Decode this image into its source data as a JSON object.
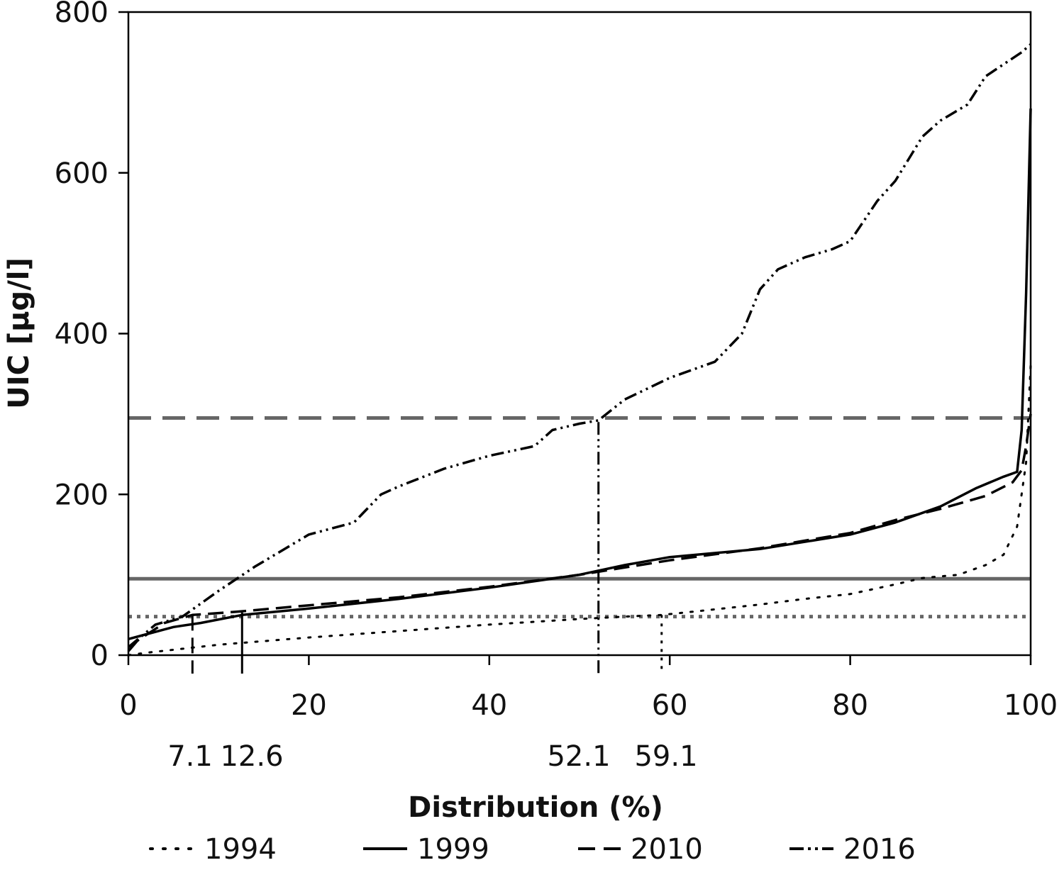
{
  "chart_data": {
    "type": "line",
    "xlabel": "Distribution (%)",
    "ylabel": "UIC [μg/l]",
    "xlim": [
      0,
      100
    ],
    "ylim": [
      0,
      800
    ],
    "x_ticks": [
      "0",
      "20",
      "40",
      "60",
      "80",
      "100"
    ],
    "y_ticks": [
      "0",
      "200",
      "400",
      "600",
      "800"
    ],
    "grid": false,
    "legend_position": "bottom",
    "series": [
      {
        "name": "1994",
        "style": "dotted",
        "x": [
          0,
          2,
          10,
          20,
          30,
          40,
          50,
          55,
          59.1,
          65,
          70,
          75,
          80,
          85,
          88,
          92,
          95,
          97,
          98.5,
          99.5,
          100
        ],
        "y": [
          0,
          3,
          13,
          22,
          30,
          38,
          45,
          48,
          50,
          57,
          63,
          70,
          76,
          88,
          96,
          100,
          112,
          125,
          160,
          240,
          360
        ]
      },
      {
        "name": "1999",
        "style": "solid",
        "x": [
          0,
          2,
          5,
          8,
          12.6,
          20,
          30,
          40,
          50,
          55,
          60,
          70,
          80,
          85,
          90,
          94,
          97,
          98.5,
          99,
          99.5,
          100
        ],
        "y": [
          20,
          26,
          35,
          40,
          50,
          58,
          70,
          84,
          100,
          112,
          122,
          132,
          150,
          165,
          185,
          208,
          222,
          228,
          280,
          450,
          680
        ]
      },
      {
        "name": "2010",
        "style": "dashed",
        "x": [
          0,
          1,
          4,
          7.1,
          12,
          20,
          30,
          40,
          50,
          60,
          70,
          80,
          85,
          90,
          95,
          98,
          99,
          99.5,
          100
        ],
        "y": [
          5,
          18,
          40,
          50,
          54,
          62,
          72,
          85,
          100,
          118,
          133,
          152,
          168,
          182,
          198,
          215,
          230,
          260,
          300
        ]
      },
      {
        "name": "2016",
        "style": "dash-dot-dot",
        "x": [
          0,
          3,
          6,
          10,
          14,
          20,
          25,
          28,
          30,
          35,
          40,
          45,
          47,
          50,
          52.1,
          55,
          60,
          65,
          68,
          70,
          72,
          75,
          78,
          80,
          83,
          85,
          88,
          90,
          93,
          95,
          97,
          99,
          100
        ],
        "y": [
          10,
          38,
          48,
          80,
          110,
          150,
          165,
          200,
          210,
          232,
          248,
          260,
          280,
          288,
          292,
          318,
          345,
          365,
          400,
          455,
          480,
          495,
          505,
          515,
          565,
          590,
          645,
          665,
          685,
          720,
          735,
          750,
          760
        ]
      }
    ],
    "reference_lines": [
      {
        "y": 295,
        "style": "dashed",
        "color": "#666666"
      },
      {
        "y": 95,
        "style": "solid",
        "color": "#666666"
      },
      {
        "y": 48,
        "style": "dotted",
        "color": "#666666"
      }
    ],
    "markers": [
      {
        "x": 7.1,
        "label": "7.1",
        "style": "dashed",
        "y_top": 50
      },
      {
        "x": 12.6,
        "label": "12.6",
        "style": "solid",
        "y_top": 53
      },
      {
        "x": 52.1,
        "label": "52.1",
        "style": "dash-dot-dot",
        "y_top": 290
      },
      {
        "x": 59.1,
        "label": "59.1",
        "style": "dotted",
        "y_top": 50
      }
    ]
  }
}
